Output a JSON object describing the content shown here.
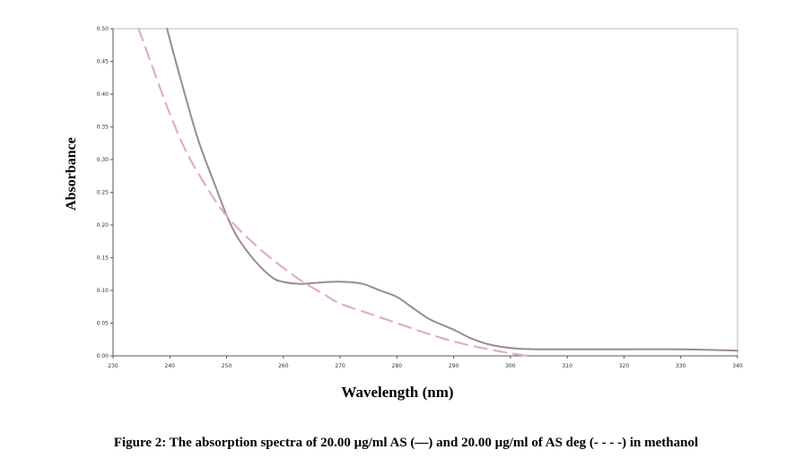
{
  "chart_data": {
    "type": "line",
    "xlabel": "Wavelength (nm)",
    "ylabel": "Absorbance",
    "xlim": [
      230,
      340
    ],
    "ylim": [
      0,
      0.5
    ],
    "x_ticks": [
      230,
      240,
      250,
      260,
      270,
      280,
      290,
      300,
      310,
      320,
      330,
      340
    ],
    "y_ticks": [
      0.0,
      0.05,
      0.1,
      0.15,
      0.2,
      0.25,
      0.3,
      0.35,
      0.4,
      0.45,
      0.5
    ],
    "x_tick_labels": [
      "230",
      "240",
      "250",
      "260",
      "270",
      "280",
      "290",
      "300",
      "310",
      "320",
      "330",
      "340"
    ],
    "y_tick_labels": [
      "0.00",
      "0.05",
      "0.10",
      "0.15",
      "0.20",
      "0.25",
      "0.30",
      "0.35",
      "0.40",
      "0.45",
      "0.50"
    ],
    "grid": false,
    "series": [
      {
        "style": "solid",
        "color": "#9b8a8f",
        "x": [
          239.5,
          242,
          245,
          248,
          250,
          252,
          255,
          258,
          260,
          263,
          265,
          268,
          271,
          274,
          277,
          280,
          283,
          286,
          290,
          293,
          296,
          300,
          305,
          310,
          320,
          330,
          340
        ],
        "y": [
          0.5,
          0.42,
          0.33,
          0.26,
          0.215,
          0.18,
          0.145,
          0.12,
          0.113,
          0.11,
          0.111,
          0.113,
          0.113,
          0.11,
          0.1,
          0.09,
          0.072,
          0.055,
          0.04,
          0.027,
          0.018,
          0.012,
          0.01,
          0.01,
          0.01,
          0.01,
          0.008
        ]
      },
      {
        "style": "dashed",
        "color": "#e0b2b2",
        "x": [
          234.5,
          237,
          240,
          243,
          246,
          249,
          252,
          255,
          258,
          261,
          264,
          267,
          270,
          275,
          280,
          285,
          290,
          295,
          300,
          303
        ],
        "y": [
          0.5,
          0.44,
          0.37,
          0.31,
          0.265,
          0.225,
          0.195,
          0.17,
          0.148,
          0.128,
          0.11,
          0.095,
          0.08,
          0.065,
          0.05,
          0.035,
          0.022,
          0.012,
          0.004,
          0.0
        ]
      }
    ]
  },
  "caption": "Figure 2: The absorption spectra of 20.00 µg/ml AS (—) and 20.00 µg/ml of AS deg (- - - -) in methanol"
}
